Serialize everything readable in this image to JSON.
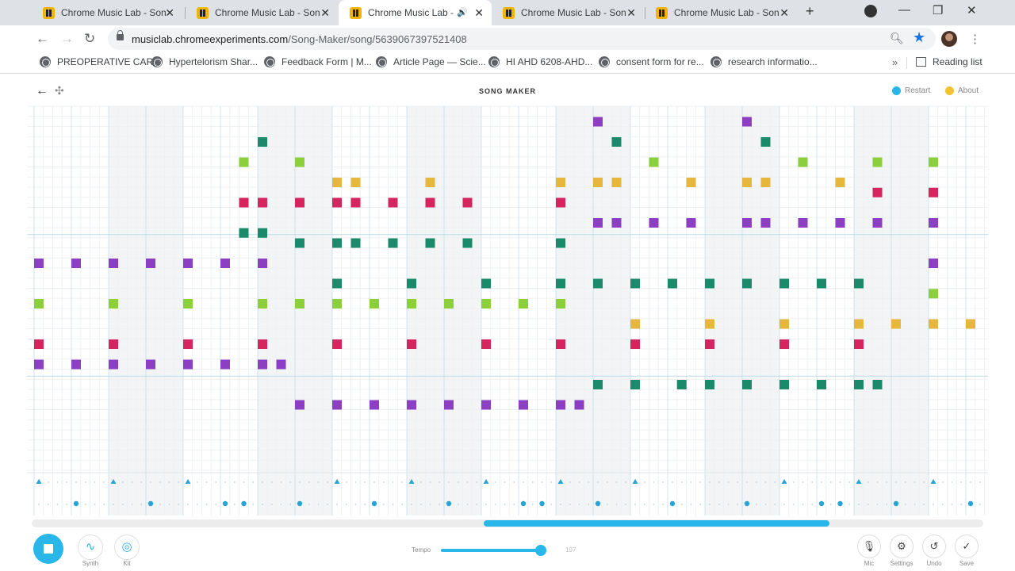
{
  "browser": {
    "tabs": [
      {
        "title": "Chrome Music Lab - Song Maker",
        "active": false
      },
      {
        "title": "Chrome Music Lab - Song Maker",
        "active": false
      },
      {
        "title": "Chrome Music Lab - Song Maker",
        "active": true
      },
      {
        "title": "Chrome Music Lab - Song Maker",
        "active": false
      },
      {
        "title": "Chrome Music Lab - Song Maker",
        "active": false
      }
    ],
    "url_host": "musiclab.chromeexperiments.com",
    "url_path": "/Song-Maker/song/5639067397521408",
    "bookmarks": [
      "PREOPERATIVE CAR...",
      "Hypertelorism Shar...",
      "Feedback Form | M...",
      "Article Page — Scie...",
      "HI AHD 6208-AHD...",
      "consent form for re...",
      "research informatio..."
    ],
    "reading_list": "Reading list"
  },
  "app": {
    "title": "SONG MAKER",
    "restart": "Restart",
    "about": "About",
    "instruments": [
      {
        "label": "Synth",
        "icon": "waveform-icon"
      },
      {
        "label": "Kit",
        "icon": "drum-kit-icon"
      }
    ],
    "tempo_label": "Tempo",
    "tempo_value": "197",
    "tempo_fraction": 0.94,
    "right_controls": [
      {
        "label": "Mic",
        "icon": "mic-icon"
      },
      {
        "label": "Settings",
        "icon": "gear-icon"
      },
      {
        "label": "Undo",
        "icon": "undo-icon"
      },
      {
        "label": "Save",
        "icon": "check-icon"
      }
    ]
  },
  "grid": {
    "columns": 26,
    "rows": 18,
    "shaded_beats": [
      2,
      3,
      6,
      7,
      10,
      11,
      14,
      15,
      18,
      19,
      22,
      23
    ],
    "octave_lines_after_row": [
      5,
      12
    ],
    "notes": [
      [
        0,
        7
      ],
      [
        1,
        7
      ],
      [
        2,
        7
      ],
      [
        3,
        7
      ],
      [
        4,
        7
      ],
      [
        5,
        7
      ],
      [
        6,
        7
      ],
      [
        0,
        9
      ],
      [
        2,
        9
      ],
      [
        4,
        9
      ],
      [
        6,
        9
      ],
      [
        0,
        11
      ],
      [
        2,
        11
      ],
      [
        4,
        11
      ],
      [
        6,
        11
      ],
      [
        0,
        12
      ],
      [
        1,
        12
      ],
      [
        2,
        12
      ],
      [
        3,
        12
      ],
      [
        4,
        12
      ],
      [
        5,
        12
      ],
      [
        6,
        12
      ],
      [
        6.5,
        12
      ],
      [
        5.5,
        2
      ],
      [
        6,
        1
      ],
      [
        7,
        2
      ],
      [
        5.5,
        4
      ],
      [
        6,
        4
      ],
      [
        7,
        4
      ],
      [
        8,
        4
      ],
      [
        8.5,
        4
      ],
      [
        9.5,
        4
      ],
      [
        10.5,
        4
      ],
      [
        11.5,
        4
      ],
      [
        14,
        4
      ],
      [
        5.5,
        5.5
      ],
      [
        6,
        5.5
      ],
      [
        7,
        6
      ],
      [
        8,
        6
      ],
      [
        8.5,
        6
      ],
      [
        9.5,
        6
      ],
      [
        10.5,
        6
      ],
      [
        11.5,
        6
      ],
      [
        14,
        6
      ],
      [
        8,
        3
      ],
      [
        8.5,
        3
      ],
      [
        10.5,
        3
      ],
      [
        14,
        3
      ],
      [
        7,
        9
      ],
      [
        8,
        9
      ],
      [
        9,
        9
      ],
      [
        10,
        9
      ],
      [
        11,
        9
      ],
      [
        12,
        9
      ],
      [
        13,
        9
      ],
      [
        14,
        9
      ],
      [
        8,
        8
      ],
      [
        10,
        8
      ],
      [
        12,
        8
      ],
      [
        14,
        8
      ],
      [
        8,
        11
      ],
      [
        10,
        11
      ],
      [
        12,
        11
      ],
      [
        14,
        11
      ],
      [
        7,
        14
      ],
      [
        8,
        14
      ],
      [
        9,
        14
      ],
      [
        10,
        14
      ],
      [
        11,
        14
      ],
      [
        12,
        14
      ],
      [
        13,
        14
      ],
      [
        14,
        14
      ],
      [
        14.5,
        14
      ],
      [
        15,
        0
      ],
      [
        15.5,
        1
      ],
      [
        16.5,
        2
      ],
      [
        15,
        3
      ],
      [
        15.5,
        3
      ],
      [
        17.5,
        3
      ],
      [
        15,
        5
      ],
      [
        15.5,
        5
      ],
      [
        16.5,
        5
      ],
      [
        17.5,
        5
      ],
      [
        15,
        8
      ],
      [
        16,
        8
      ],
      [
        17,
        8
      ],
      [
        18,
        8
      ],
      [
        16,
        10
      ],
      [
        18,
        10
      ],
      [
        16,
        11
      ],
      [
        18,
        11
      ],
      [
        15,
        13
      ],
      [
        16,
        13
      ],
      [
        17.25,
        13
      ],
      [
        18,
        13
      ],
      [
        19,
        0
      ],
      [
        19.5,
        1
      ],
      [
        20.5,
        2
      ],
      [
        19,
        3
      ],
      [
        19.5,
        3
      ],
      [
        21.5,
        3
      ],
      [
        19,
        5
      ],
      [
        19.5,
        5
      ],
      [
        20.5,
        5
      ],
      [
        21.5,
        5
      ],
      [
        22.5,
        5
      ],
      [
        24,
        5
      ],
      [
        19,
        8
      ],
      [
        20,
        8
      ],
      [
        21,
        8
      ],
      [
        22,
        8
      ],
      [
        20,
        10
      ],
      [
        22,
        10
      ],
      [
        23,
        10
      ],
      [
        24,
        10
      ],
      [
        25,
        10
      ],
      [
        20,
        11
      ],
      [
        22,
        11
      ],
      [
        19,
        13
      ],
      [
        20,
        13
      ],
      [
        21,
        13
      ],
      [
        22,
        13
      ],
      [
        22.5,
        13
      ],
      [
        22.5,
        2
      ],
      [
        24,
        2
      ],
      [
        22.5,
        3.5
      ],
      [
        24,
        3.5
      ],
      [
        24,
        7
      ],
      [
        24,
        8.5
      ]
    ],
    "drum_triangles": [
      0,
      2,
      4,
      8,
      10,
      12,
      14,
      16,
      20,
      22,
      24
    ],
    "drum_dots": [
      1,
      3,
      5,
      5.5,
      7,
      9,
      11,
      13,
      13.5,
      15,
      17,
      19,
      21,
      21.5,
      23,
      25
    ]
  }
}
